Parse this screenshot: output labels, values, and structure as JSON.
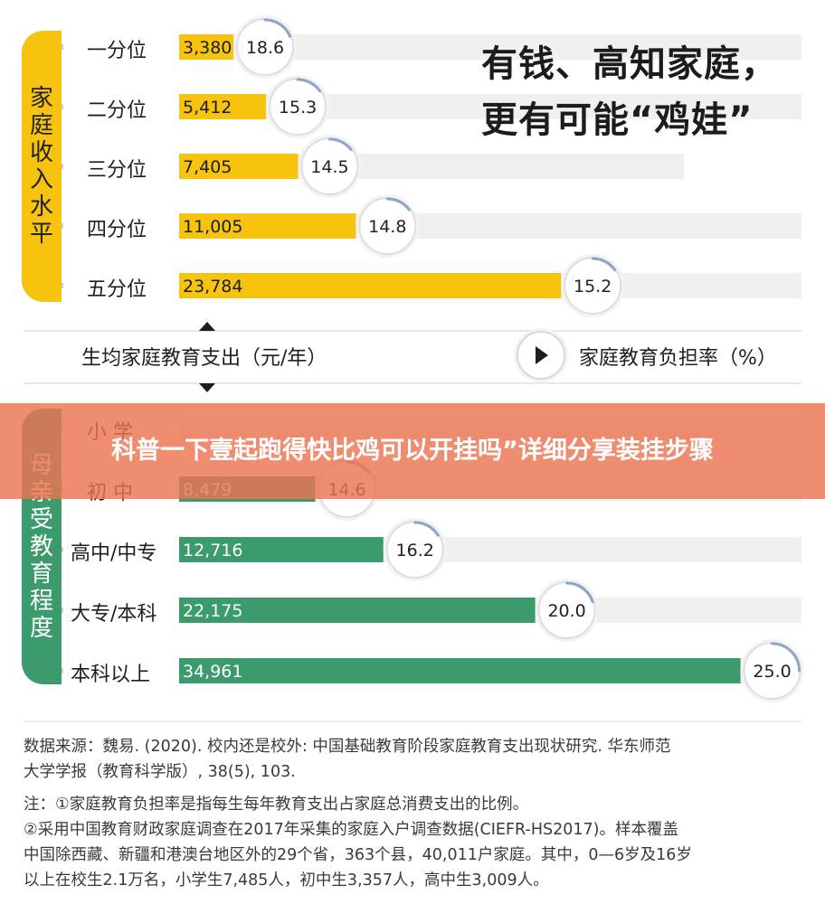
{
  "headline": {
    "line1": "有钱、高知家庭，",
    "line2": "更有可能“鸡娃”"
  },
  "chart_data": [
    {
      "type": "bar",
      "group_label": "家庭收入水平",
      "categories": [
        "一分位",
        "二分位",
        "三分位",
        "四分位",
        "五分位"
      ],
      "series": [
        {
          "name": "生均家庭教育支出（元/年）",
          "values": [
            3380,
            5412,
            7405,
            11005,
            23784
          ],
          "labels": [
            "3,380",
            "5,412",
            "7,405",
            "11,005",
            "23,784"
          ]
        },
        {
          "name": "家庭教育负担率（%）",
          "values": [
            18.6,
            15.3,
            14.5,
            14.8,
            15.2
          ],
          "labels": [
            "18.6",
            "15.3",
            "14.5",
            "14.8",
            "15.2"
          ]
        }
      ],
      "xlim": [
        0,
        36000
      ],
      "bar_color": "#f6c40e"
    },
    {
      "type": "bar",
      "group_label": "母亲受教育程度",
      "categories": [
        "小学",
        "初中",
        "高中/中专",
        "大专/本科",
        "本科以上"
      ],
      "series": [
        {
          "name": "生均家庭教育支出（元/年）",
          "values": [
            null,
            8479,
            12716,
            22175,
            34961
          ],
          "labels": [
            "",
            "8,479",
            "12,716",
            "22,175",
            "34,961"
          ]
        },
        {
          "name": "家庭教育负担率（%）",
          "values": [
            null,
            14.6,
            16.2,
            20.0,
            25.0
          ],
          "labels": [
            "",
            "14.6",
            "16.2",
            "20.0",
            "25.0"
          ]
        }
      ],
      "xlim": [
        0,
        36000
      ],
      "bar_color": "#3c9b6c"
    }
  ],
  "legend": {
    "left": "生均家庭教育支出（元/年）",
    "right": "家庭教育负担率（%）"
  },
  "income_group_label_chars": [
    "家",
    "庭",
    "收",
    "入",
    "水",
    "平"
  ],
  "edu_group_label_chars": [
    "母",
    "亲",
    "受",
    "教",
    "育",
    "程",
    "度"
  ],
  "income_rows": [
    "一分位",
    "二分位",
    "三分位",
    "四分位",
    "五分位"
  ],
  "edu_rows": [
    "小  学",
    "初  中",
    "高中/中专",
    "大专/本科",
    "本科以上"
  ],
  "banner": {
    "text": "科普一下壹起跑得快比鸡可以开挂吗”详细分享装挂步骤"
  },
  "source": {
    "line1": "数据来源：魏易. (2020). 校内还是校外: 中国基础教育阶段家庭教育支出现状研究. 华东师范",
    "line2": "大学学报（教育科学版）, 38(5), 103."
  },
  "notes": {
    "line1": "注：①家庭教育负担率是指每生每年教育支出占家庭总消费支出的比例。",
    "line2": "②采用中国教育财政家庭调查在2017年采集的家庭入户调查数据(CIEFR-HS2017)。样本覆盖",
    "line3": "中国除西藏、新疆和港澳台地区外的29个省，363个县，40,011户家庭。其中，0—6岁及16岁",
    "line4": "以上在校生2.1万名，小学生7,485人，初中生3,357人，高中生3,009人。"
  },
  "colors": {
    "income": "#f6c40e",
    "education": "#3c9b6c",
    "track": "#f0f0f0",
    "ring": "#dedede",
    "arc": "#8da6c8"
  }
}
